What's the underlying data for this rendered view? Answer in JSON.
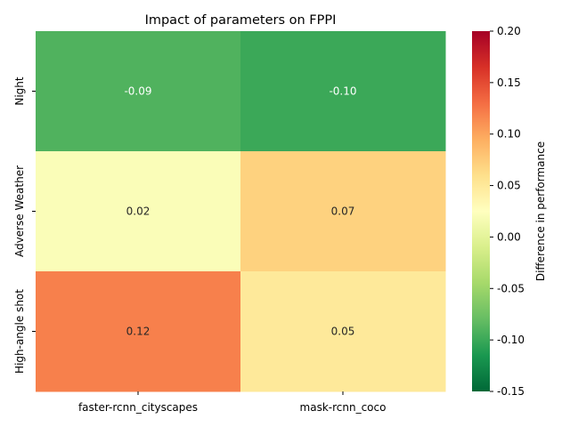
{
  "chart_data": {
    "type": "heatmap",
    "title": "Impact of parameters on FPPI",
    "xlabel": "",
    "ylabel": "",
    "x_categories": [
      "faster-rcnn_cityscapes",
      "mask-rcnn_coco"
    ],
    "y_categories": [
      "Night",
      "Adverse Weather",
      "High-angle shot"
    ],
    "values": [
      [
        -0.09,
        -0.1
      ],
      [
        0.02,
        0.07
      ],
      [
        0.12,
        0.05
      ]
    ],
    "cell_labels": [
      [
        "-0.09",
        "-0.10"
      ],
      [
        "0.02",
        "0.07"
      ],
      [
        "0.12",
        "0.05"
      ]
    ],
    "colormap": "RdYlGn_r",
    "colorbar": {
      "label": "Difference in performance",
      "vmin": -0.15,
      "vmax": 0.2,
      "ticks": [
        -0.15,
        -0.1,
        -0.05,
        0.0,
        0.05,
        0.1,
        0.15,
        0.2
      ],
      "tick_labels": [
        "-0.15",
        "-0.10",
        "-0.05",
        "0.00",
        "0.05",
        "0.10",
        "0.15",
        "0.20"
      ]
    },
    "grid": false
  }
}
